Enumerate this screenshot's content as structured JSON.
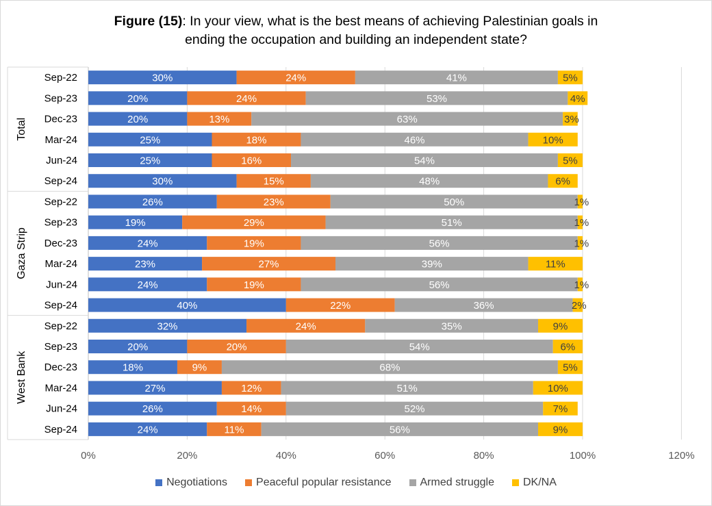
{
  "title": {
    "bold": "Figure (15)",
    "line1": ": In your view, what is the best means of achieving Palestinian goals in",
    "line2": "ending the occupation and building an independent state?"
  },
  "colors": {
    "negotiations": "#4472C4",
    "peaceful": "#ED7D31",
    "armed": "#A5A5A5",
    "dkna": "#FFC000"
  },
  "chart_data": {
    "type": "bar",
    "orientation": "horizontal",
    "stacked": true,
    "xlim": [
      0,
      120
    ],
    "x_ticks": [
      "0%",
      "20%",
      "40%",
      "60%",
      "80%",
      "100%",
      "120%"
    ],
    "groups": [
      {
        "name": "Total",
        "categories": [
          "Sep-22",
          "Sep-23",
          "Dec-23",
          "Mar-24",
          "Jun-24",
          "Sep-24"
        ],
        "values": {
          "Negotiations": [
            30,
            20,
            20,
            25,
            25,
            30
          ],
          "Peaceful popular resistance": [
            24,
            24,
            13,
            18,
            16,
            15
          ],
          "Armed struggle": [
            41,
            53,
            63,
            46,
            54,
            48
          ],
          "DK/NA": [
            5,
            4,
            3,
            10,
            5,
            6
          ]
        }
      },
      {
        "name": "Gaza Strip",
        "categories": [
          "Sep-22",
          "Sep-23",
          "Dec-23",
          "Mar-24",
          "Jun-24",
          "Sep-24"
        ],
        "values": {
          "Negotiations": [
            26,
            19,
            24,
            23,
            24,
            40
          ],
          "Peaceful popular resistance": [
            23,
            29,
            19,
            27,
            19,
            22
          ],
          "Armed struggle": [
            50,
            51,
            56,
            39,
            56,
            36
          ],
          "DK/NA": [
            1,
            1,
            1,
            11,
            1,
            2
          ]
        }
      },
      {
        "name": "West Bank",
        "categories": [
          "Sep-22",
          "Sep-23",
          "Dec-23",
          "Mar-24",
          "Jun-24",
          "Sep-24"
        ],
        "values": {
          "Negotiations": [
            32,
            20,
            18,
            27,
            26,
            24
          ],
          "Peaceful popular resistance": [
            24,
            20,
            9,
            12,
            14,
            11
          ],
          "Armed struggle": [
            35,
            54,
            68,
            51,
            52,
            56
          ],
          "DK/NA": [
            9,
            6,
            5,
            10,
            7,
            9
          ]
        }
      }
    ],
    "series": [
      {
        "name": "Negotiations",
        "color": "#4472C4"
      },
      {
        "name": "Peaceful popular resistance",
        "color": "#ED7D31"
      },
      {
        "name": "Armed struggle",
        "color": "#A5A5A5"
      },
      {
        "name": "DK/NA",
        "color": "#FFC000"
      }
    ],
    "grid": true,
    "legend_position": "bottom"
  }
}
